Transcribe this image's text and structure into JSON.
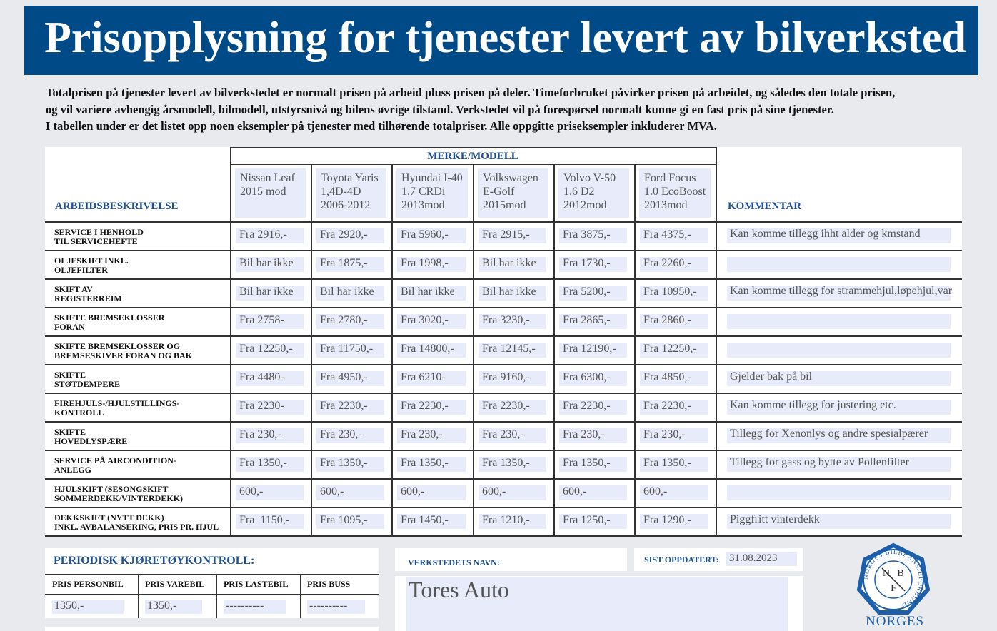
{
  "header": {
    "title": "Prisopplysning for tjenester levert av bilverksted"
  },
  "intro": [
    "Totalprisen på tjenester levert av bilverkstedet er normalt prisen på arbeid pluss prisen på deler. Timeforbruket påvirker prisen på arbeidet, og således den totale prisen,",
    "og vil variere avhengig årsmodell, bilmodell, utstyrsnivå og bilens øvrige tilstand. Verkstedet vil på forespørsel normalt kunne gi en fast pris på sine tjenester.",
    "I tabellen under er det listet opp noen eksempler på tjenester med tilhørende totalpriser. Alle oppgitte priseksempler inkluderer MVA."
  ],
  "table": {
    "desc_header": "ARBEIDSBESKRIVELSE",
    "group_header": "MERKE/MODELL",
    "comment_header": "KOMMENTAR",
    "models": [
      [
        "Nissan Leaf",
        "2015 mod"
      ],
      [
        "Toyota Yaris",
        "1,4D-4D",
        "2006-2012"
      ],
      [
        "Hyundai I-40",
        "1.7 CRDi",
        "2013mod"
      ],
      [
        "Volkswagen",
        "E-Golf",
        "2015mod"
      ],
      [
        "Volvo V-50",
        "1.6 D2",
        "2012mod"
      ],
      [
        "Ford Focus",
        "1.0 EcoBoost",
        "2013mod"
      ]
    ],
    "rows": [
      {
        "label": [
          "SERVICE I HENHOLD",
          "TIL SERVICEHEFTE"
        ],
        "prices": [
          "Fra 2916,-",
          "Fra 2920,-",
          "Fra 5960,-",
          "Fra 2915,-",
          "Fra 3875,-",
          "Fra 4375,-"
        ],
        "comment": "Kan komme tillegg ihht alder og kmstand"
      },
      {
        "label": [
          "OLJESKIFT INKL.",
          "OLJEFILTER"
        ],
        "prices": [
          "Bil har ikke",
          "Fra 1875,-",
          "Fra 1998,-",
          "Bil har ikke",
          "Fra 1730,-",
          "Fra 2260,-"
        ]
      },
      {
        "label": [
          "SKIFT AV",
          "REGISTERREIM"
        ],
        "prices": [
          "Bil har ikke",
          "Bil har ikke",
          "Bil har ikke",
          "Bil har ikke",
          "Fra 5200,-",
          "Fra 10950,-"
        ],
        "comment": "Kan komme tillegg for strammehjul,løpehjul,var"
      },
      {
        "label": [
          "SKIFTE BREMSEKLOSSER",
          "FORAN"
        ],
        "prices": [
          "Fra 2758-",
          "Fra 2780,-",
          "Fra 3020,-",
          "Fra 3230,-",
          "Fra 2865,-",
          "Fra 2860,-"
        ]
      },
      {
        "label": [
          "SKIFTE BREMSEKLOSSER OG",
          "BREMSESKIVER FORAN OG BAK"
        ],
        "prices": [
          "Fra 12250,-",
          "Fra 11750,-",
          "Fra 14800,-",
          "Fra 12145,-",
          "Fra 12190,-",
          "Fra 12250,-"
        ]
      },
      {
        "label": [
          "SKIFTE",
          "STØTDEMPERE"
        ],
        "prices": [
          "Fra 4480-",
          "Fra 4950,-",
          "Fra 6210-",
          "Fra 9160,-",
          "Fra 6300,-",
          "Fra 4850,-"
        ],
        "comment": "Gjelder bak på bil"
      },
      {
        "label": [
          "FIREHJULS-/HJULSTILLINGS-",
          "KONTROLL"
        ],
        "prices": [
          "Fra 2230-",
          "Fra 2230,-",
          "Fra 2230,-",
          "Fra 2230,-",
          "Fra 2230,-",
          "Fra 2230,-"
        ],
        "comment": "Kan komme tillegg for justering etc."
      },
      {
        "label": [
          "SKIFTE",
          "HOVEDLYSPÆRE"
        ],
        "prices": [
          "Fra 230,-",
          "Fra 230,-",
          "Fra 230,-",
          "Fra 230,-",
          "Fra 230,-",
          "Fra 230,-"
        ],
        "comment": "Tillegg for Xenonlys og andre spesialpærer"
      },
      {
        "label": [
          "SERVICE PÅ AIRCONDITION-",
          "ANLEGG"
        ],
        "prices": [
          "Fra 1350,-",
          "Fra 1350,-",
          "Fra 1350,-",
          "Fra 1350,-",
          "Fra 1350,-",
          "Fra 1350,-"
        ],
        "comment": "Tillegg for gass og bytte av Pollenfilter"
      },
      {
        "label": [
          "HJULSKIFT (SESONGSKIFT",
          "SOMMERDEKK/VINTERDEKK)"
        ],
        "prices": [
          "600,-",
          "600,-",
          "600,-",
          "600,-",
          "600,-",
          "600,-"
        ]
      },
      {
        "label": [
          "DEKKSKIFT (NYTT DEKK)",
          "INKL. AVBALANSERING, PRIS PR. HJUL"
        ],
        "prices": [
          "Fra  1150,-",
          "Fra 1095,-",
          "Fra 1450,-",
          "Fra 1210,-",
          "Fra 1250,-",
          "Fra 1290,-"
        ],
        "comment": "Piggfritt vinterdekk"
      }
    ]
  },
  "inspection": {
    "title": "PERIODISK KJØRETØYKONTROLL:",
    "headers": [
      "PRIS PERSONBIL",
      "PRIS VAREBIL",
      "PRIS LASTEBIL",
      "PRIS BUSS"
    ],
    "values": [
      "1350,-",
      "1350,-",
      "----------",
      "----------"
    ]
  },
  "workshop": {
    "label": "VERKSTEDETS NAVN:",
    "name": "Tores Auto",
    "updated_label": "SIST OPPDATERT:",
    "updated": "31.08.2023"
  },
  "logo": {
    "ring": "NORGES BILBRANSJEFORBUND",
    "letters": [
      "N",
      "B",
      "F"
    ],
    "caption": "NORGES"
  }
}
